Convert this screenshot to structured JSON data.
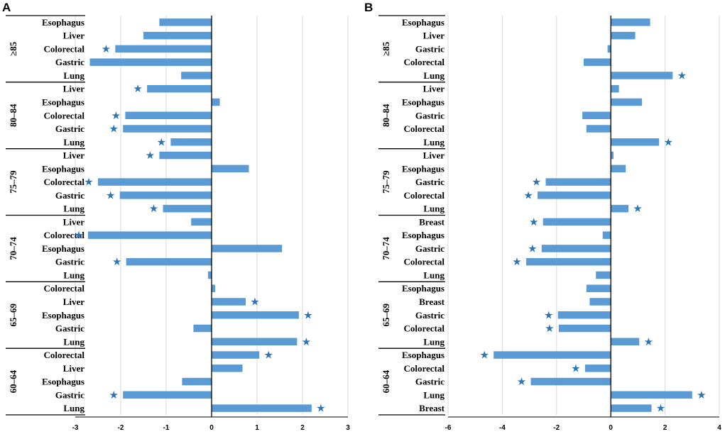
{
  "colors": {
    "bar": "#5B9BD5",
    "star": "#2E75B6",
    "grid": "#D9D9D9",
    "axis": "#000000"
  },
  "chart_data": [
    {
      "panel": "A",
      "type": "bar",
      "orientation": "horizontal",
      "xlim": [
        -3,
        3
      ],
      "ticks": [
        -3,
        -2,
        -1,
        0,
        1,
        2,
        3
      ],
      "grid": true,
      "groups": [
        {
          "label": "≥85",
          "items": [
            {
              "label": "Esophagus",
              "value": -1.15,
              "star": false
            },
            {
              "label": "Liver",
              "value": -1.5,
              "star": false
            },
            {
              "label": "Colorectal",
              "value": -2.12,
              "star": true
            },
            {
              "label": "Gastric",
              "value": -2.68,
              "star": false
            },
            {
              "label": "Lung",
              "value": -0.67,
              "star": false
            }
          ]
        },
        {
          "label": "80–84",
          "items": [
            {
              "label": "Liver",
              "value": -1.42,
              "star": true
            },
            {
              "label": "Esophagus",
              "value": 0.18,
              "star": false
            },
            {
              "label": "Colorectal",
              "value": -1.9,
              "star": true
            },
            {
              "label": "Gastric",
              "value": -1.95,
              "star": true
            },
            {
              "label": "Lung",
              "value": -0.9,
              "star": true
            }
          ]
        },
        {
          "label": "75–79",
          "items": [
            {
              "label": "Liver",
              "value": -1.15,
              "star": true
            },
            {
              "label": "Esophagus",
              "value": 0.82,
              "star": false
            },
            {
              "label": "Colorectal",
              "value": -2.5,
              "star": true
            },
            {
              "label": "Gastric",
              "value": -2.02,
              "star": true
            },
            {
              "label": "Lung",
              "value": -1.07,
              "star": true
            }
          ]
        },
        {
          "label": "70–74",
          "items": [
            {
              "label": "Liver",
              "value": -0.45,
              "star": false
            },
            {
              "label": "Colorectal",
              "value": -2.72,
              "star": true
            },
            {
              "label": "Esophagus",
              "value": 1.55,
              "star": false
            },
            {
              "label": "Gastric",
              "value": -1.88,
              "star": true
            },
            {
              "label": "Lung",
              "value": -0.08,
              "star": false
            }
          ]
        },
        {
          "label": "65–69",
          "items": [
            {
              "label": "Colorectal",
              "value": 0.08,
              "star": false
            },
            {
              "label": "Liver",
              "value": 0.75,
              "star": true
            },
            {
              "label": "Esophagus",
              "value": 1.92,
              "star": true
            },
            {
              "label": "Gastric",
              "value": -0.4,
              "star": false
            },
            {
              "label": "Lung",
              "value": 1.88,
              "star": true
            }
          ]
        },
        {
          "label": "60–64",
          "items": [
            {
              "label": "Colorectal",
              "value": 1.05,
              "star": true
            },
            {
              "label": "Liver",
              "value": 0.68,
              "star": false
            },
            {
              "label": "Esophagus",
              "value": -0.65,
              "star": false
            },
            {
              "label": "Gastric",
              "value": -1.95,
              "star": true
            },
            {
              "label": "Lung",
              "value": 2.2,
              "star": true
            }
          ]
        }
      ]
    },
    {
      "panel": "B",
      "type": "bar",
      "orientation": "horizontal",
      "xlim": [
        -6,
        4
      ],
      "ticks": [
        -6,
        -4,
        -2,
        0,
        2,
        4
      ],
      "grid": true,
      "groups": [
        {
          "label": "≥85",
          "items": [
            {
              "label": "Esophagus",
              "value": 1.45,
              "star": false
            },
            {
              "label": "Liver",
              "value": 0.9,
              "star": false
            },
            {
              "label": "Gastric",
              "value": -0.12,
              "star": false
            },
            {
              "label": "Colorectal",
              "value": -1.0,
              "star": false
            },
            {
              "label": "Lung",
              "value": 2.28,
              "star": true
            }
          ]
        },
        {
          "label": "80–84",
          "items": [
            {
              "label": "Liver",
              "value": 0.3,
              "star": false
            },
            {
              "label": "Esophagus",
              "value": 1.15,
              "star": false
            },
            {
              "label": "Gastric",
              "value": -1.05,
              "star": false
            },
            {
              "label": "Colorectal",
              "value": -0.9,
              "star": false
            },
            {
              "label": "Lung",
              "value": 1.78,
              "star": true
            }
          ]
        },
        {
          "label": "75–79",
          "items": [
            {
              "label": "Liver",
              "value": 0.1,
              "star": false
            },
            {
              "label": "Esophagus",
              "value": 0.55,
              "star": false
            },
            {
              "label": "Gastric",
              "value": -2.4,
              "star": true
            },
            {
              "label": "Colorectal",
              "value": -2.7,
              "star": true
            },
            {
              "label": "Lung",
              "value": 0.65,
              "star": true
            }
          ]
        },
        {
          "label": "70–74",
          "items": [
            {
              "label": "Breast",
              "value": -2.5,
              "star": true
            },
            {
              "label": "Esophagus",
              "value": -0.3,
              "star": false
            },
            {
              "label": "Gastric",
              "value": -2.55,
              "star": true
            },
            {
              "label": "Colorectal",
              "value": -3.12,
              "star": true
            },
            {
              "label": "Lung",
              "value": -0.55,
              "star": false
            }
          ]
        },
        {
          "label": "65–69",
          "items": [
            {
              "label": "Esophagus",
              "value": -0.9,
              "star": false
            },
            {
              "label": "Breast",
              "value": -0.78,
              "star": false
            },
            {
              "label": "Gastric",
              "value": -1.95,
              "star": true
            },
            {
              "label": "Colorectal",
              "value": -1.92,
              "star": true
            },
            {
              "label": "Lung",
              "value": 1.05,
              "star": true
            }
          ]
        },
        {
          "label": "60–64",
          "items": [
            {
              "label": "Esophagus",
              "value": -4.32,
              "star": true
            },
            {
              "label": "Colorectal",
              "value": -0.95,
              "star": true
            },
            {
              "label": "Gastric",
              "value": -2.95,
              "star": true
            },
            {
              "label": "Lung",
              "value": 3.0,
              "star": true
            },
            {
              "label": "Breast",
              "value": 1.5,
              "star": true
            }
          ]
        }
      ]
    }
  ]
}
